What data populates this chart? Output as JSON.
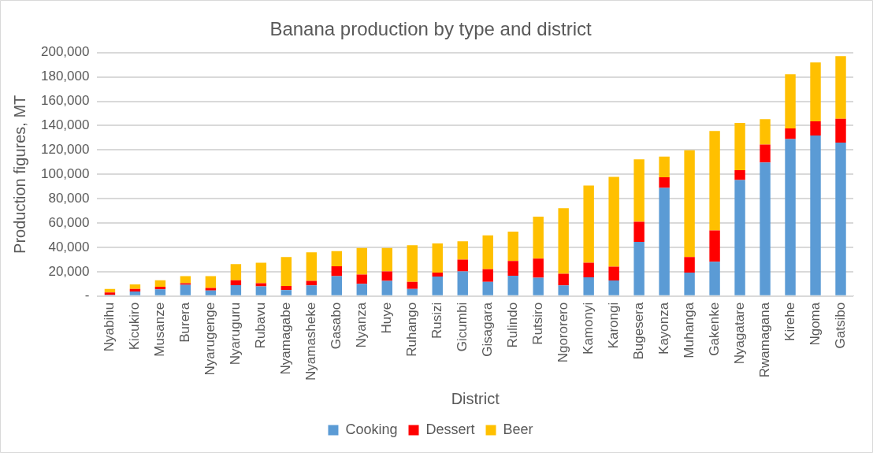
{
  "chart_data": {
    "type": "bar",
    "title": "Banana production by type and district",
    "xlabel": "District",
    "ylabel": "Production figures, MT",
    "categories": [
      "Nyabihu",
      "Kicukiro",
      "Musanze",
      "Burera",
      "Nyarugenge",
      "Nyaruguru",
      "Rubavu",
      "Nyamagabe",
      "Nyamasheke",
      "Gasabo",
      "Nyanza",
      "Huye",
      "Ruhango",
      "Rusizi",
      "Gicumbi",
      "Gisagara",
      "Rulindo",
      "Rutsiro",
      "Ngororero",
      "Kamonyi",
      "Karongi",
      "Bugesera",
      "Kayonza",
      "Muhanga",
      "Gakenke",
      "Nyagatare",
      "Rwamagana",
      "Kirehe",
      "Ngoma",
      "Gatsibo"
    ],
    "series": [
      {
        "name": "Cooking",
        "color": "#5b9bd5",
        "values": [
          1000,
          3800,
          5500,
          9300,
          4500,
          9000,
          8000,
          4800,
          8700,
          16400,
          10000,
          12500,
          5800,
          16000,
          20200,
          11600,
          16700,
          15100,
          8700,
          15400,
          12800,
          44600,
          88900,
          19300,
          28200,
          95300,
          109800,
          129000,
          131900,
          126100
        ]
      },
      {
        "name": "Dessert",
        "color": "#ff0000",
        "values": [
          2000,
          2000,
          2200,
          1300,
          2200,
          4000,
          2600,
          3500,
          3800,
          8000,
          7700,
          7700,
          5800,
          3300,
          9700,
          10500,
          12200,
          15700,
          9600,
          11900,
          11300,
          16400,
          8700,
          12800,
          25700,
          8100,
          14700,
          8700,
          11600,
          19600
        ]
      },
      {
        "name": "Beer",
        "color": "#ffc000",
        "values": [
          2800,
          3800,
          5300,
          5800,
          9700,
          13300,
          16700,
          23800,
          23500,
          12600,
          21800,
          19300,
          30100,
          24000,
          15100,
          27700,
          24100,
          34400,
          53900,
          63500,
          73800,
          51300,
          17000,
          87600,
          81800,
          38800,
          20900,
          44600,
          48500,
          51400
        ]
      }
    ],
    "stacked": true,
    "ylim": [
      0,
      200000
    ],
    "yticks": [
      {
        "value": 0,
        "label": "-"
      },
      {
        "value": 20000,
        "label": "20,000"
      },
      {
        "value": 40000,
        "label": "40,000"
      },
      {
        "value": 60000,
        "label": "60,000"
      },
      {
        "value": 80000,
        "label": "80,000"
      },
      {
        "value": 100000,
        "label": "100,000"
      },
      {
        "value": 120000,
        "label": "120,000"
      },
      {
        "value": 140000,
        "label": "140,000"
      },
      {
        "value": 160000,
        "label": "160,000"
      },
      {
        "value": 180000,
        "label": "180,000"
      },
      {
        "value": 200000,
        "label": "200,000"
      }
    ],
    "grid": "y",
    "legend": "bottom"
  }
}
